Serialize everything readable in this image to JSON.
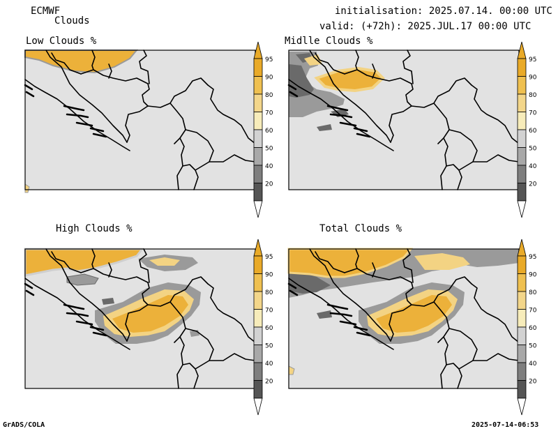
{
  "header": {
    "model": "ECMWF",
    "product": "Clouds",
    "init_line": "initialisation: 2025.07.14. 00:00 UTC",
    "valid_line": "valid: (+72h): 2025.JUL.17 00:00 UTC"
  },
  "panels": [
    {
      "title": "Low Clouds %"
    },
    {
      "title": "Midlle Clouds %"
    },
    {
      "title": "High Clouds %"
    },
    {
      "title": "Total Clouds %"
    }
  ],
  "colorbar": {
    "labels": [
      "95",
      "90",
      "80",
      "70",
      "60",
      "50",
      "40",
      "20"
    ],
    "colors": [
      "#e9aa28",
      "#efc050",
      "#f3d68a",
      "#f7ecba",
      "#d2d2d2",
      "#a8a8a8",
      "#7e7e7e",
      "#555555"
    ],
    "end_top_color": "#e9aa28",
    "end_bottom_color": "#ffffff"
  },
  "map_colors": {
    "background": "#e2e2e2",
    "yellow": "#ecb13a",
    "light_yellow": "#f3d383",
    "gray": "#9a9a9a",
    "dark_gray": "#6a6a6a",
    "border": "#000000"
  },
  "footer": {
    "left": "GrADS/COLA",
    "right": "2025-07-14-06:53"
  }
}
